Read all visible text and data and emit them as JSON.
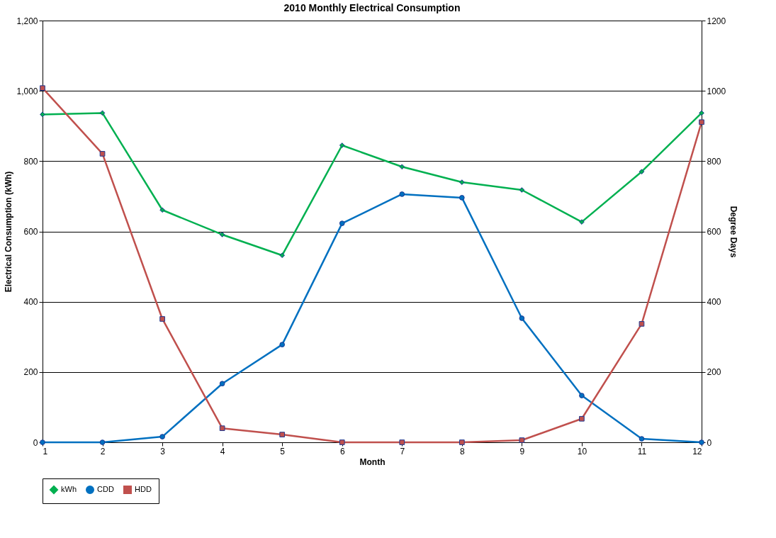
{
  "chart_data": {
    "type": "line",
    "title": "2010 Monthly Electrical Consumption",
    "xlabel": "Month",
    "ylabel": "Electrical Consumption (kWh)",
    "y2label": "Degree Days",
    "x": [
      1,
      2,
      3,
      4,
      5,
      6,
      7,
      8,
      9,
      10,
      11,
      12
    ],
    "xlim": [
      1,
      12
    ],
    "xticks": [
      1,
      2,
      3,
      4,
      5,
      6,
      7,
      8,
      9,
      10,
      11,
      12
    ],
    "ylim": [
      0,
      1200
    ],
    "yticks": [
      0,
      200,
      400,
      600,
      800,
      {
        "value": 1000,
        "label": "1,000"
      },
      {
        "value": 1200,
        "label": "1,200"
      }
    ],
    "y2lim": [
      0,
      1200
    ],
    "y2ticks": [
      0,
      200,
      400,
      600,
      800,
      1000,
      1200
    ],
    "grid": "y",
    "legend": "bottom",
    "series": [
      {
        "name": "kWh",
        "color": "#00b050",
        "marker": "diamond",
        "values": [
          933,
          937,
          661,
          591,
          532,
          845,
          784,
          740,
          718,
          627,
          770,
          937
        ]
      },
      {
        "name": "CDD",
        "color": "#0070c0",
        "marker": "circle",
        "axis": "y2",
        "values": [
          0,
          0,
          16,
          167,
          278,
          623,
          706,
          696,
          353,
          133,
          10,
          0
        ]
      },
      {
        "name": "HDD",
        "color": "#c0504d",
        "marker": "square",
        "axis": "y2",
        "values": [
          1008,
          821,
          351,
          40,
          22,
          0,
          0,
          0,
          6,
          67,
          337,
          911
        ]
      }
    ]
  }
}
